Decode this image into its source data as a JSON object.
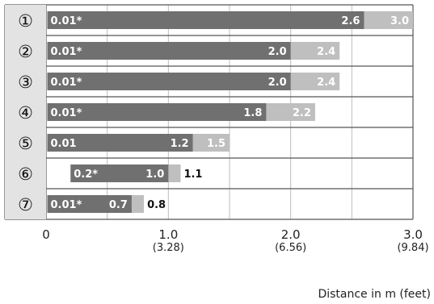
{
  "chart_data": {
    "type": "bar",
    "orientation": "horizontal",
    "stacked": true,
    "xlim": [
      0,
      3.0
    ],
    "xlabel": "Distance in m (feet)",
    "x_ticks": [
      {
        "value": 0,
        "label": "0",
        "sub": ""
      },
      {
        "value": 1.0,
        "label": "1.0",
        "sub": "(3.28)"
      },
      {
        "value": 2.0,
        "label": "2.0",
        "sub": "(6.56)"
      },
      {
        "value": 3.0,
        "label": "3.0",
        "sub": "(9.84)"
      }
    ],
    "grid": true,
    "colors": {
      "primary": "#707070",
      "secondary": "#bfbfbf",
      "label_bg": "#e3e3e3"
    },
    "rows": [
      {
        "label": "①",
        "start": 0.01,
        "start_label": "0.01*",
        "dark_end": 2.6,
        "dark_label": "2.6",
        "light_end": 3.0,
        "light_label": "3.0"
      },
      {
        "label": "②",
        "start": 0.01,
        "start_label": "0.01*",
        "dark_end": 2.0,
        "dark_label": "2.0",
        "light_end": 2.4,
        "light_label": "2.4"
      },
      {
        "label": "③",
        "start": 0.01,
        "start_label": "0.01*",
        "dark_end": 2.0,
        "dark_label": "2.0",
        "light_end": 2.4,
        "light_label": "2.4"
      },
      {
        "label": "④",
        "start": 0.01,
        "start_label": "0.01*",
        "dark_end": 1.8,
        "dark_label": "1.8",
        "light_end": 2.2,
        "light_label": "2.2"
      },
      {
        "label": "⑤",
        "start": 0.01,
        "start_label": "0.01",
        "dark_end": 1.2,
        "dark_label": "1.2",
        "light_end": 1.5,
        "light_label": "1.5"
      },
      {
        "label": "⑥",
        "start": 0.2,
        "start_label": "0.2*",
        "dark_end": 1.0,
        "dark_label": "1.0",
        "light_end": 1.1,
        "light_label": "1.1"
      },
      {
        "label": "⑦",
        "start": 0.01,
        "start_label": "0.01*",
        "dark_end": 0.7,
        "dark_label": "0.7",
        "light_end": 0.8,
        "light_label": "0.8"
      }
    ]
  }
}
